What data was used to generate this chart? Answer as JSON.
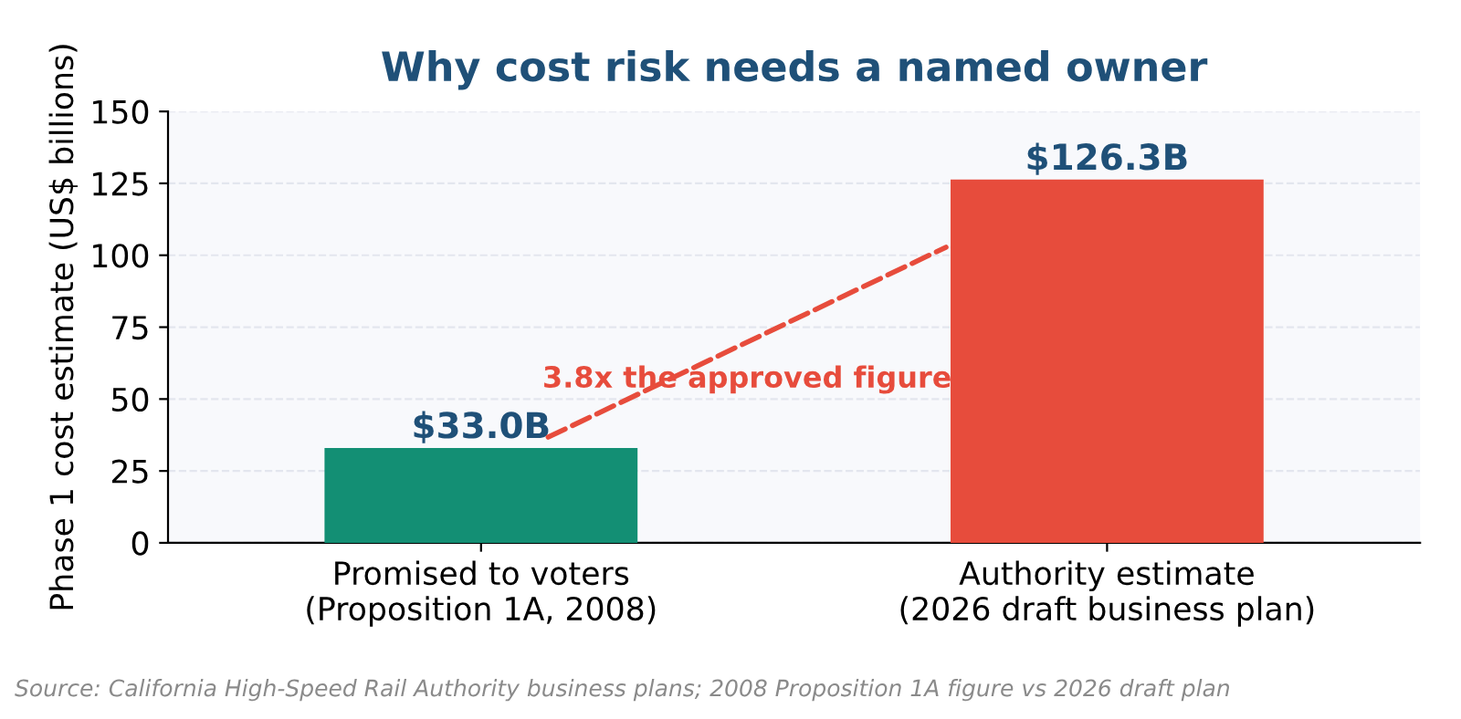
{
  "chart_data": {
    "type": "bar",
    "title": "Why cost risk needs a named owner",
    "ylabel": "Phase 1 cost estimate (US$ billions)",
    "categories": [
      "Promised to voters\n(Proposition 1A, 2008)",
      "Authority estimate\n(2026 draft business plan)"
    ],
    "values": [
      33.0,
      126.3
    ],
    "colors": [
      "#138f74",
      "#e74c3c"
    ],
    "value_labels": [
      "$33.0B",
      "$126.3B"
    ],
    "ylim": [
      0,
      150
    ],
    "yticks": [
      0,
      25,
      50,
      75,
      100,
      125,
      150
    ],
    "grid": "y",
    "annotations": [
      "3.8x the approved figure",
      "Source: California High-Speed Rail Authority business plans; 2008 Proposition 1A figure vs 2026 draft plan"
    ]
  }
}
